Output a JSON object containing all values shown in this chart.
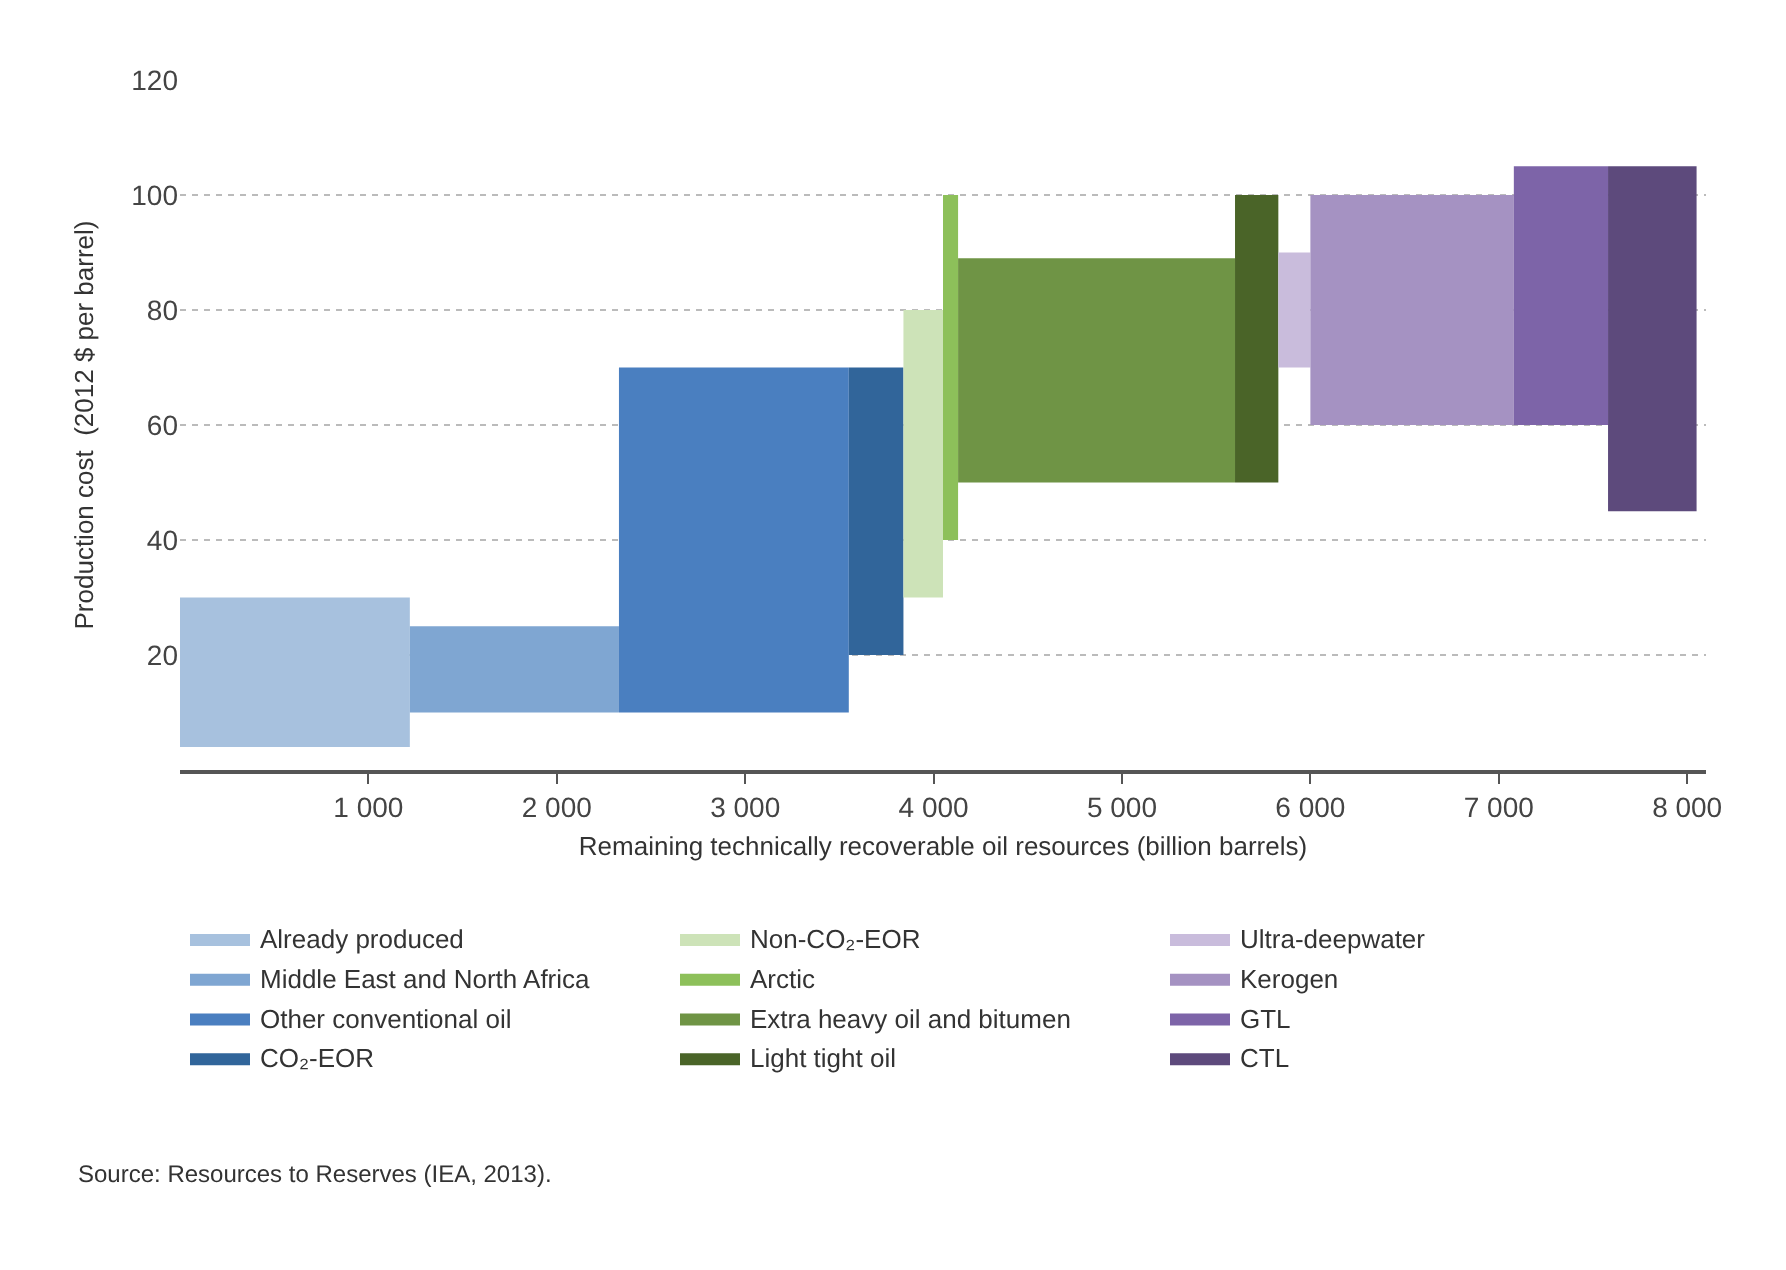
{
  "chart_data": {
    "type": "area",
    "xlabel": "Remaining technically recoverable oil resources (billion barrels)",
    "ylabel": "Production cost  (2012 $ per barrel)",
    "xlim": [
      0,
      8100
    ],
    "ylim": [
      0,
      120
    ],
    "xticks": [
      {
        "value": 1000,
        "label": "1 000"
      },
      {
        "value": 2000,
        "label": "2 000"
      },
      {
        "value": 3000,
        "label": "3 000"
      },
      {
        "value": 4000,
        "label": "4 000"
      },
      {
        "value": 5000,
        "label": "5 000"
      },
      {
        "value": 6000,
        "label": "6 000"
      },
      {
        "value": 7000,
        "label": "7 000"
      },
      {
        "value": 8000,
        "label": "8 000"
      }
    ],
    "yticks": [
      20,
      40,
      60,
      80,
      100,
      120
    ],
    "grid": "y",
    "legend": "bottom",
    "series": [
      {
        "name": "Already produced",
        "color": "#a7c1de",
        "x": [
          0,
          1220
        ],
        "values": [
          null,
          null
        ],
        "upper": [
          30,
          30
        ],
        "lower": [
          4,
          4
        ]
      },
      {
        "name": "Middle East and North Africa",
        "color": "#7fa6d2",
        "x": [
          1220,
          2330
        ],
        "values": [
          null,
          null
        ],
        "upper": [
          25,
          25
        ],
        "lower": [
          10,
          10
        ]
      },
      {
        "name": "Other conventional oil",
        "color": "#4a7fc0",
        "x": [
          2330,
          3550
        ],
        "values": [
          null,
          null
        ],
        "upper": [
          70,
          70
        ],
        "lower": [
          10,
          10
        ]
      },
      {
        "name": "CO₂-EOR",
        "color": "#31659a",
        "x": [
          3550,
          3840
        ],
        "values": [
          null,
          null
        ],
        "upper": [
          70,
          70
        ],
        "lower": [
          20,
          20
        ]
      },
      {
        "name": "Non-CO₂-EOR",
        "color": "#cde3b8",
        "x": [
          3840,
          4050
        ],
        "values": [
          null,
          null
        ],
        "upper": [
          80,
          80
        ],
        "lower": [
          30,
          30
        ]
      },
      {
        "name": "Arctic",
        "color": "#8dc05a",
        "x": [
          4050,
          4130
        ],
        "values": [
          null,
          null
        ],
        "upper": [
          100,
          100
        ],
        "lower": [
          40,
          40
        ]
      },
      {
        "name": "Extra heavy oil and bitumen",
        "color": "#6f9445",
        "x": [
          4130,
          5600
        ],
        "values": [
          null,
          null
        ],
        "upper": [
          89,
          89
        ],
        "lower": [
          50,
          50
        ]
      },
      {
        "name": "Light tight oil",
        "color": "#4a6428",
        "x": [
          5600,
          5830
        ],
        "values": [
          null,
          null
        ],
        "upper": [
          100,
          100
        ],
        "lower": [
          50,
          50
        ]
      },
      {
        "name": "Ultra-deepwater",
        "color": "#c9bcdc",
        "x": [
          5830,
          6000
        ],
        "values": [
          null,
          null
        ],
        "upper": [
          90,
          90
        ],
        "lower": [
          70,
          70
        ]
      },
      {
        "name": "Kerogen",
        "color": "#a592c2",
        "x": [
          6000,
          7080
        ],
        "values": [
          null,
          null
        ],
        "upper": [
          100,
          100
        ],
        "lower": [
          60,
          60
        ]
      },
      {
        "name": "GTL",
        "color": "#7d64a8",
        "x": [
          7080,
          7580
        ],
        "values": [
          null,
          null
        ],
        "upper": [
          105,
          105
        ],
        "lower": [
          60,
          60
        ]
      },
      {
        "name": "CTL",
        "color": "#5d4a7c",
        "x": [
          7580,
          8050
        ],
        "values": [
          null,
          null
        ],
        "upper": [
          105,
          105
        ],
        "lower": [
          45,
          45
        ]
      }
    ],
    "annotations": [
      "Source: Resources to Reserves (IEA, 2013)."
    ]
  }
}
